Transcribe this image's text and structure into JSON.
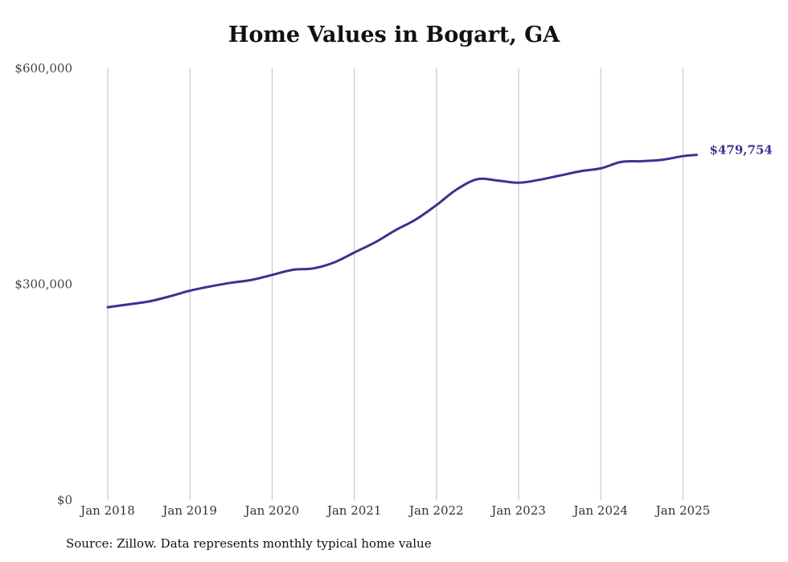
{
  "chart_data": {
    "type": "line",
    "title": "Home Values in Bogart, GA",
    "xlabel": "",
    "ylabel": "",
    "ylim": [
      0,
      600000
    ],
    "yticks": [
      {
        "value": 0,
        "label": "$0"
      },
      {
        "value": 300000,
        "label": "$300,000"
      },
      {
        "value": 600000,
        "label": "$600,000"
      }
    ],
    "xticks": [
      "Jan 2018",
      "Jan 2019",
      "Jan 2020",
      "Jan 2021",
      "Jan 2022",
      "Jan 2023",
      "Jan 2024",
      "Jan 2025"
    ],
    "grid": "vertical",
    "line_color": "#3b3290",
    "series": [
      {
        "points": [
          [
            "2018-01",
            268000
          ],
          [
            "2018-04",
            272000
          ],
          [
            "2018-07",
            276000
          ],
          [
            "2018-10",
            283000
          ],
          [
            "2019-01",
            291000
          ],
          [
            "2019-04",
            297000
          ],
          [
            "2019-07",
            302000
          ],
          [
            "2019-10",
            306000
          ],
          [
            "2020-01",
            313000
          ],
          [
            "2020-04",
            320000
          ],
          [
            "2020-07",
            322000
          ],
          [
            "2020-10",
            330000
          ],
          [
            "2021-01",
            344000
          ],
          [
            "2021-04",
            358000
          ],
          [
            "2021-07",
            375000
          ],
          [
            "2021-10",
            390000
          ],
          [
            "2022-01",
            410000
          ],
          [
            "2022-04",
            432000
          ],
          [
            "2022-07",
            446000
          ],
          [
            "2022-10",
            444000
          ],
          [
            "2023-01",
            441000
          ],
          [
            "2023-04",
            445000
          ],
          [
            "2023-07",
            451000
          ],
          [
            "2023-10",
            457000
          ],
          [
            "2024-01",
            461000
          ],
          [
            "2024-04",
            470000
          ],
          [
            "2024-07",
            471000
          ],
          [
            "2024-10",
            473000
          ],
          [
            "2025-01",
            478000
          ],
          [
            "2025-03",
            479754
          ]
        ]
      }
    ],
    "end_label": "$479,754"
  },
  "source": "Source: Zillow. Data represents monthly typical home value"
}
